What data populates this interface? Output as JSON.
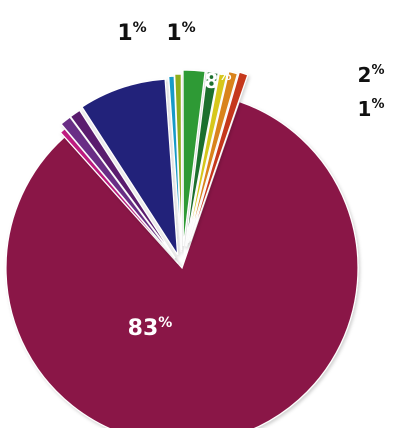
{
  "chart_data": {
    "type": "pie",
    "title": "",
    "slices": [
      {
        "label": "83%",
        "value": 83,
        "color": "#8a1547",
        "label_color": "#ffffff"
      },
      {
        "label": "",
        "value": 0.5,
        "color": "#c21a82"
      },
      {
        "label": "1%",
        "value": 1,
        "color": "#6a2d86",
        "label_color": "#111111"
      },
      {
        "label": "1%",
        "value": 1,
        "color": "#5a1f6e",
        "label_color": "#111111"
      },
      {
        "label": "8%",
        "value": 8,
        "color": "#23227a",
        "label_color": "#ffffff"
      },
      {
        "label": "",
        "value": 0.5,
        "color": "#169bc8"
      },
      {
        "label": "",
        "value": 0.6,
        "color": "#8fae1f"
      },
      {
        "label": "2%",
        "value": 2,
        "color": "#2f9a34",
        "label_color": "#111111"
      },
      {
        "label": "1%",
        "value": 1,
        "color": "#1f6f2f",
        "label_color": "#111111"
      },
      {
        "label": "",
        "value": 0.7,
        "color": "#d6c71c"
      },
      {
        "label": "",
        "value": 0.8,
        "color": "#d9831e"
      },
      {
        "label": "",
        "value": 0.8,
        "color": "#c5381f"
      }
    ]
  }
}
